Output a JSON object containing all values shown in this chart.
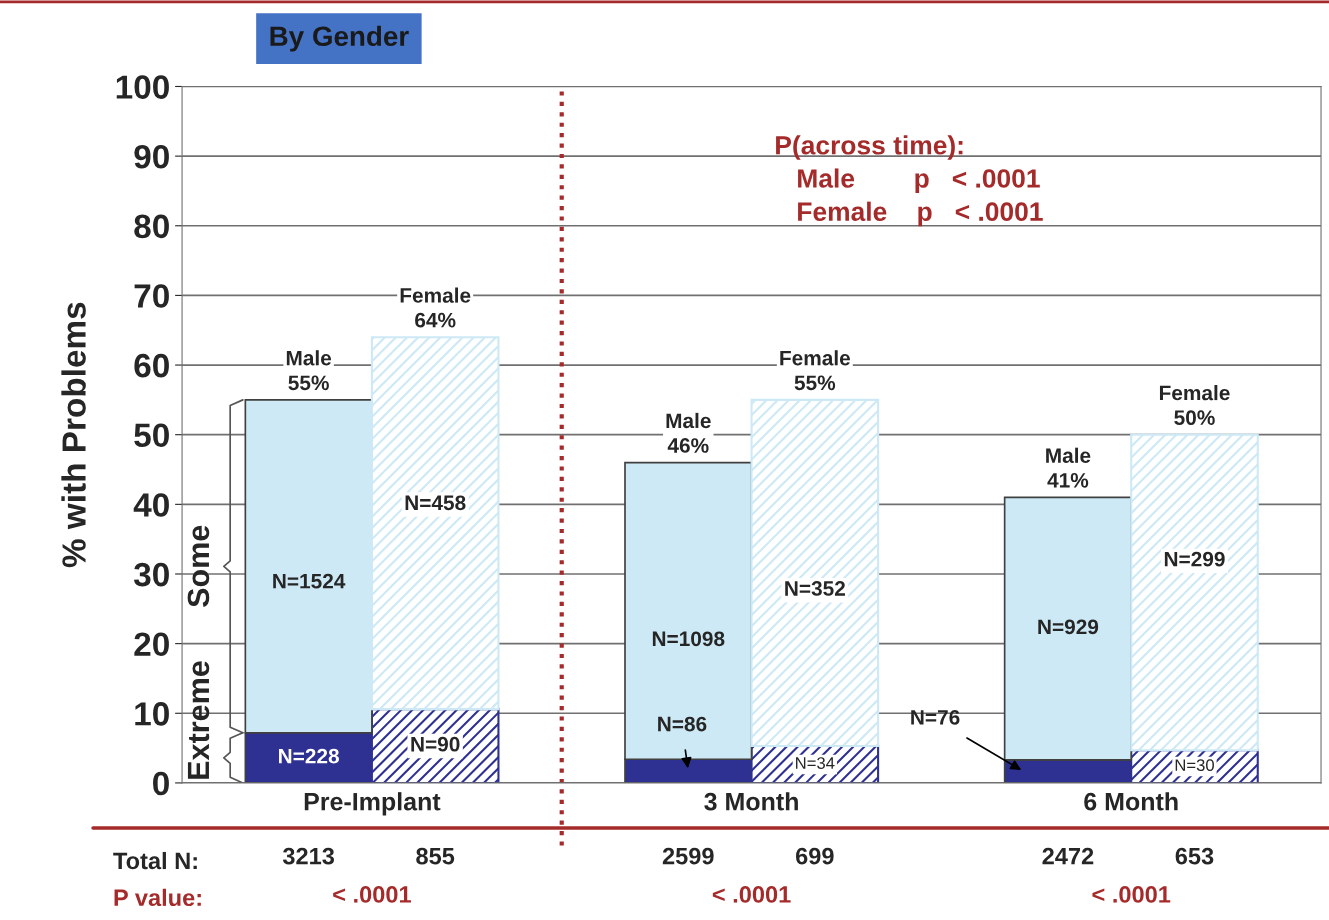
{
  "chart_data": {
    "type": "bar",
    "title": "By Gender",
    "ylabel": "% with Problems",
    "categories": [
      null,
      null,
      null,
      null,
      null,
      null
    ],
    "stacked": true,
    "series": [
      {
        "name": "Extreme",
        "color": "#2e3192",
        "values": [
          7.2,
          10.6,
          3.4,
          5.3,
          3.3,
          4.7
        ]
      },
      {
        "name": "Some",
        "color": "#cde9f5",
        "values": [
          47.8,
          53.4,
          42.6,
          49.7,
          37.7,
          45.3
        ]
      }
    ],
    "totals": [
      "Male\n55%",
      "Female\n64%",
      "Male\n46%",
      "Female\n55%",
      "Male\n41%",
      "Female\n50%"
    ],
    "ylim": [
      0,
      100
    ],
    "yticks": [
      0,
      10,
      20,
      30,
      40,
      50,
      60,
      70,
      80,
      90,
      100
    ],
    "grid": "y",
    "tick_labels": "y",
    "annotations": [
      "P(across time):\n   Male        p   < .0001\n   Female    p   < .0001",
      "Pre-Implant",
      "3 Month",
      "6 Month",
      "Total N:",
      "3213",
      "855",
      "2599",
      "699",
      "2472",
      "653",
      "P value:",
      "< .0001",
      "< .0001",
      "< .0001",
      "N=228",
      "N=90",
      "N=86",
      "N=34",
      "N=76",
      "N=30",
      "N=1524",
      "N=458",
      "N=1098",
      "N=352",
      "N=929",
      "N=299"
    ]
  }
}
